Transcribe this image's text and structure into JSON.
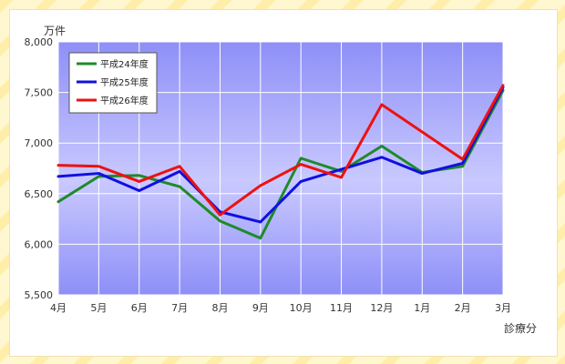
{
  "chart_data": {
    "type": "line",
    "title": "",
    "ylabel": "万件",
    "xlabel": "診療分",
    "categories": [
      "4月",
      "5月",
      "6月",
      "7月",
      "8月",
      "9月",
      "10月",
      "11月",
      "12月",
      "1月",
      "2月",
      "3月"
    ],
    "ylim": [
      5500,
      8000
    ],
    "yticks": [
      5500,
      6000,
      6500,
      7000,
      7500,
      8000
    ],
    "ytick_labels": [
      "5,500",
      "6,000",
      "6,500",
      "7,000",
      "7,500",
      "8,000"
    ],
    "grid": true,
    "legend_position": "top-left",
    "series": [
      {
        "name": "平成24年度",
        "color": "#1f8a2a",
        "values": [
          6420,
          6670,
          6680,
          6570,
          6230,
          6060,
          6850,
          6720,
          6970,
          6710,
          6770,
          7520
        ]
      },
      {
        "name": "平成25年度",
        "color": "#1010e0",
        "values": [
          6670,
          6700,
          6530,
          6720,
          6320,
          6220,
          6620,
          6740,
          6860,
          6700,
          6800,
          7550
        ]
      },
      {
        "name": "平成26年度",
        "color": "#ee1111",
        "values": [
          6780,
          6770,
          6620,
          6770,
          6290,
          6580,
          6790,
          6660,
          7380,
          7110,
          6840,
          7570
        ]
      }
    ]
  }
}
